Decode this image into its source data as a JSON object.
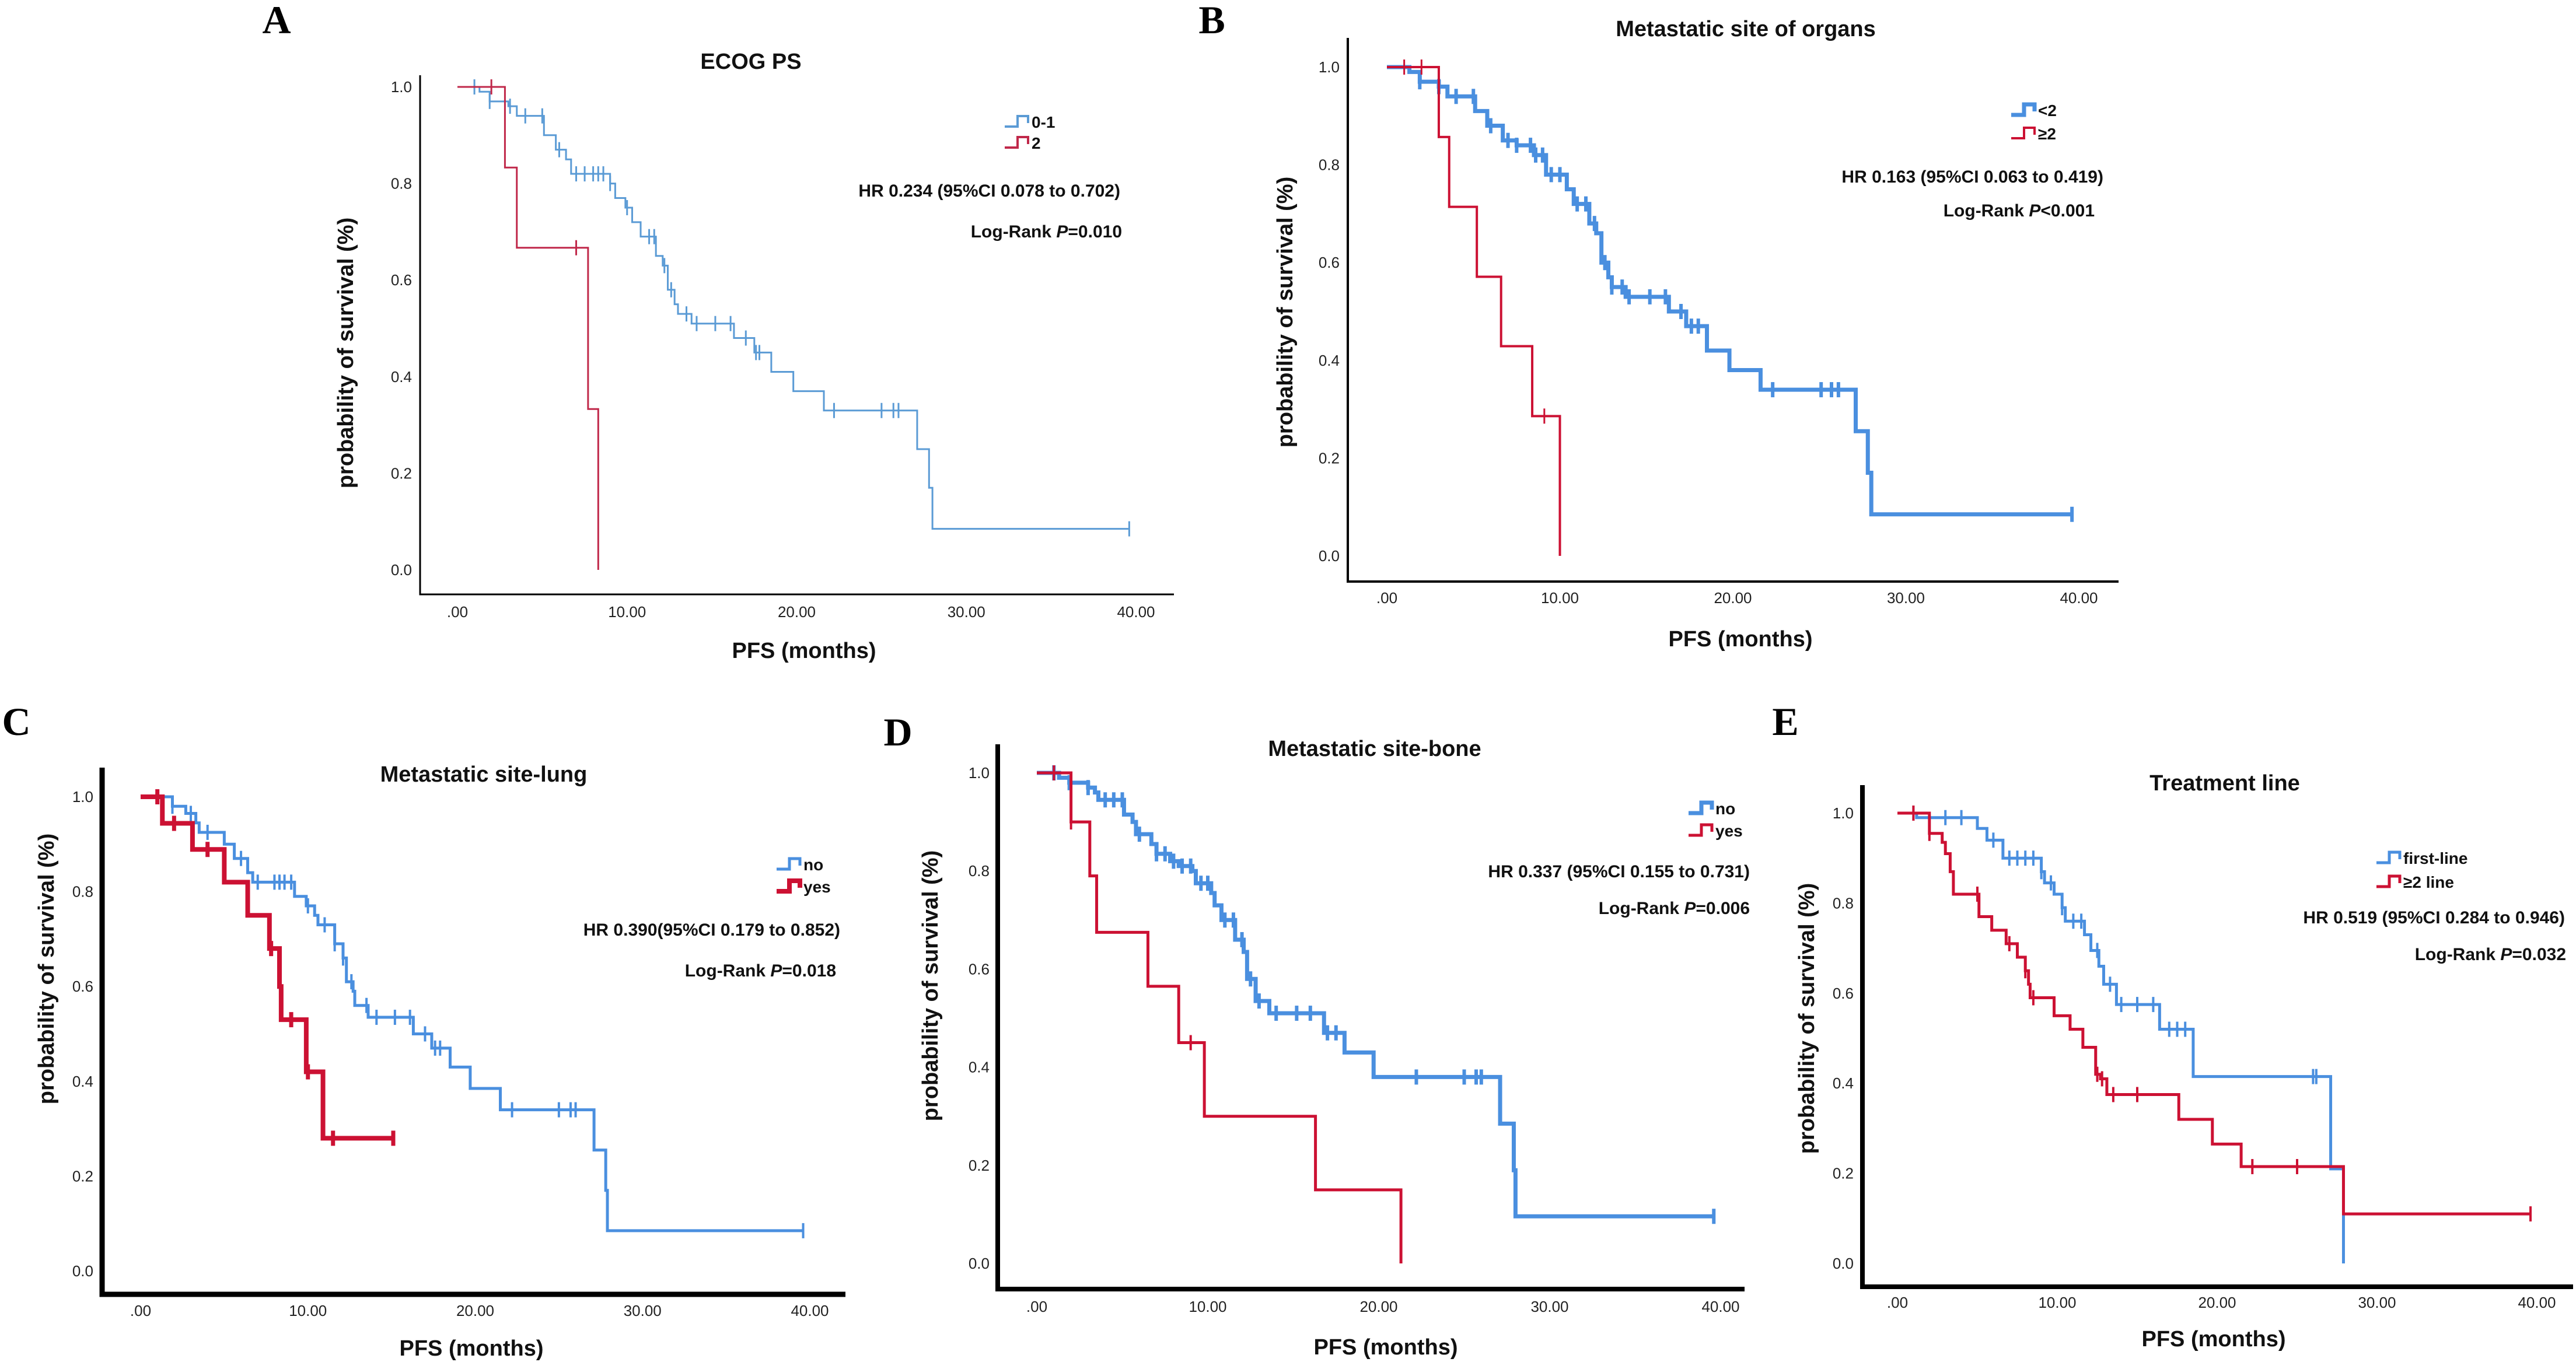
{
  "chart_data": [
    {
      "type": "line",
      "letter": "A",
      "title": "ECOG PS",
      "xlabel": "PFS (months)",
      "ylabel": "probability of survival (%)",
      "xticks": [
        ".00",
        "10.00",
        "20.00",
        "30.00",
        "40.00"
      ],
      "yticks": [
        "0.0",
        "0.2",
        "0.4",
        "0.6",
        "0.8",
        "1.0"
      ],
      "xlim": [
        0,
        40
      ],
      "ylim": [
        0,
        1
      ],
      "hr": "HR 0.234 (95%CI 0.078 to 0.702)",
      "logrank": "Log-Rank ",
      "p": "P",
      "pval": "=0.010",
      "series": [
        {
          "name": "0-1",
          "color": "#5b9bd5",
          "steps": [
            [
              1.3,
              0.99
            ],
            [
              1.9,
              0.97
            ],
            [
              3,
              0.96
            ],
            [
              3.5,
              0.94
            ],
            [
              5.1,
              0.9
            ],
            [
              5.8,
              0.87
            ],
            [
              6.4,
              0.85
            ],
            [
              6.7,
              0.82
            ],
            [
              9,
              0.8
            ],
            [
              9.3,
              0.77
            ],
            [
              9.9,
              0.75
            ],
            [
              10.3,
              0.72
            ],
            [
              10.8,
              0.69
            ],
            [
              11.7,
              0.65
            ],
            [
              12.1,
              0.63
            ],
            [
              12.4,
              0.58
            ],
            [
              12.8,
              0.55
            ],
            [
              13,
              0.53
            ],
            [
              13.8,
              0.51
            ],
            [
              16.3,
              0.48
            ],
            [
              17.5,
              0.45
            ],
            [
              18.5,
              0.41
            ],
            [
              19.8,
              0.37
            ],
            [
              21.6,
              0.33
            ],
            [
              27.1,
              0.25
            ],
            [
              27.8,
              0.17
            ],
            [
              28,
              0.085
            ]
          ],
          "end": 39.6,
          "censors": [
            1,
            1.9,
            3.1,
            4,
            5,
            6,
            7,
            7.5,
            8,
            8.3,
            8.6,
            9,
            10,
            11.3,
            11.6,
            12.2,
            12.6,
            13.5,
            14.1,
            15.2,
            16.1,
            17,
            17.6,
            17.8,
            22.2,
            25,
            25.7,
            26,
            39.6
          ]
        },
        {
          "name": "2",
          "color": "#c0284a",
          "steps": [
            [
              2.8,
              0.833
            ],
            [
              3.5,
              0.667
            ],
            [
              7.7,
              0.333
            ],
            [
              8.3,
              0
            ]
          ],
          "end": 8.3,
          "censors": [
            2,
            7
          ]
        }
      ]
    },
    {
      "type": "line",
      "letter": "B",
      "title": "Metastatic site of organs",
      "xlabel": "PFS (months)",
      "ylabel": "probability of survival (%)",
      "xticks": [
        ".00",
        "10.00",
        "20.00",
        "30.00",
        "40.00"
      ],
      "yticks": [
        "0.0",
        "0.2",
        "0.4",
        "0.6",
        "0.8",
        "1.0"
      ],
      "xlim": [
        0,
        40
      ],
      "ylim": [
        0,
        1
      ],
      "hr": "HR 0.163 (95%CI 0.063 to 0.419)",
      "logrank": "Log-Rank ",
      "p": "P",
      "pval": "<0.001",
      "series": [
        {
          "name": "<2",
          "color": "#4a8fdf",
          "steps": [
            [
              1.3,
              0.99
            ],
            [
              1.9,
              0.97
            ],
            [
              3,
              0.96
            ],
            [
              3.5,
              0.94
            ],
            [
              5.1,
              0.91
            ],
            [
              5.8,
              0.88
            ],
            [
              6.7,
              0.85
            ],
            [
              7.5,
              0.84
            ],
            [
              8.5,
              0.82
            ],
            [
              9.2,
              0.78
            ],
            [
              10.4,
              0.75
            ],
            [
              10.8,
              0.72
            ],
            [
              11.7,
              0.68
            ],
            [
              12.1,
              0.66
            ],
            [
              12.4,
              0.6
            ],
            [
              12.8,
              0.57
            ],
            [
              13,
              0.55
            ],
            [
              13.8,
              0.53
            ],
            [
              16.3,
              0.5
            ],
            [
              17.3,
              0.47
            ],
            [
              18.5,
              0.42
            ],
            [
              19.8,
              0.38
            ],
            [
              21.6,
              0.34
            ],
            [
              27.1,
              0.255
            ],
            [
              27.8,
              0.17
            ],
            [
              28,
              0.085
            ]
          ],
          "end": 39.6,
          "censors": [
            1.9,
            3,
            4,
            5,
            6,
            7,
            7.5,
            8.3,
            8.6,
            9,
            9.5,
            10,
            11,
            11.5,
            12,
            12.6,
            13,
            13.6,
            14,
            15.2,
            16.1,
            17,
            17.6,
            18,
            22.3,
            25.1,
            25.7,
            26.1,
            39.6
          ]
        },
        {
          "name": "≥2",
          "color": "#cc1133",
          "steps": [
            [
              3,
              0.857
            ],
            [
              3.6,
              0.714
            ],
            [
              5.2,
              0.571
            ],
            [
              6.6,
              0.429
            ],
            [
              8.4,
              0.286
            ],
            [
              10,
              0
            ]
          ],
          "end": 10,
          "censors": [
            1,
            2,
            9.1
          ]
        }
      ]
    },
    {
      "type": "line",
      "letter": "C",
      "title": "Metastatic site-lung",
      "xlabel": "PFS (months)",
      "ylabel": "probability of survival (%)",
      "xticks": [
        ".00",
        "10.00",
        "20.00",
        "30.00",
        "40.00"
      ],
      "yticks": [
        "0.0",
        "0.2",
        "0.4",
        "0.6",
        "0.8",
        "1.0"
      ],
      "xlim": [
        0,
        40
      ],
      "ylim": [
        0,
        1
      ],
      "hr": "HR 0.390(95%CI 0.179 to 0.852)",
      "logrank": "Log-Rank ",
      "p": "P",
      "pval": "=0.018",
      "series": [
        {
          "name": "no",
          "color": "#4a8fdf",
          "steps": [
            [
              1.9,
              0.98
            ],
            [
              2.7,
              0.965
            ],
            [
              3.3,
              0.945
            ],
            [
              3.5,
              0.925
            ],
            [
              5,
              0.9
            ],
            [
              5.6,
              0.87
            ],
            [
              6.4,
              0.84
            ],
            [
              6.7,
              0.82
            ],
            [
              9.2,
              0.79
            ],
            [
              9.9,
              0.77
            ],
            [
              10.4,
              0.75
            ],
            [
              10.6,
              0.73
            ],
            [
              11.6,
              0.69
            ],
            [
              12.1,
              0.66
            ],
            [
              12.3,
              0.61
            ],
            [
              12.7,
              0.59
            ],
            [
              12.8,
              0.56
            ],
            [
              13.6,
              0.535
            ],
            [
              16.3,
              0.5
            ],
            [
              17.4,
              0.47
            ],
            [
              18.5,
              0.43
            ],
            [
              19.7,
              0.385
            ],
            [
              21.5,
              0.34
            ],
            [
              27.1,
              0.255
            ],
            [
              27.8,
              0.17
            ],
            [
              27.9,
              0.085
            ]
          ],
          "end": 39.6,
          "censors": [
            1.9,
            3,
            4,
            6,
            7,
            8,
            8.3,
            8.6,
            9,
            10,
            11,
            11.6,
            12.1,
            12.6,
            13.5,
            14.1,
            15.2,
            16.1,
            17,
            17.6,
            17.9,
            22.2,
            25,
            25.7,
            26,
            39.6
          ]
        },
        {
          "name": "yes",
          "color": "#cc1133",
          "steps": [
            [
              1.3,
              0.944
            ],
            [
              3.1,
              0.889
            ],
            [
              5,
              0.82
            ],
            [
              6.4,
              0.75
            ],
            [
              7.7,
              0.68
            ],
            [
              8.3,
              0.6
            ],
            [
              8.4,
              0.53
            ],
            [
              9.9,
              0.42
            ],
            [
              10.9,
              0.28
            ]
          ],
          "end": 15.2,
          "censors": [
            1,
            2,
            4,
            7.8,
            9,
            10,
            11.5,
            15.1
          ]
        }
      ]
    },
    {
      "type": "line",
      "letter": "D",
      "title": "Metastatic site-bone",
      "xlabel": "PFS (months)",
      "ylabel": "probability of survival (%)",
      "xticks": [
        ".00",
        "10.00",
        "20.00",
        "30.00",
        "40.00"
      ],
      "yticks": [
        "0.0",
        "0.2",
        "0.4",
        "0.6",
        "0.8",
        "1.0"
      ],
      "xlim": [
        0,
        40
      ],
      "ylim": [
        0,
        1
      ],
      "hr": "HR 0.337 (95%CI 0.155 to 0.731)",
      "logrank": "Log-Rank ",
      "p": "P",
      "pval": "=0.006",
      "series": [
        {
          "name": "no",
          "color": "#4a8fdf",
          "steps": [
            [
              1.3,
              0.99
            ],
            [
              1.9,
              0.98
            ],
            [
              3,
              0.97
            ],
            [
              3.4,
              0.96
            ],
            [
              3.6,
              0.945
            ],
            [
              5.1,
              0.915
            ],
            [
              5.6,
              0.9
            ],
            [
              5.8,
              0.875
            ],
            [
              6.7,
              0.855
            ],
            [
              7,
              0.835
            ],
            [
              7.8,
              0.82
            ],
            [
              8.3,
              0.81
            ],
            [
              9.1,
              0.8
            ],
            [
              9.3,
              0.775
            ],
            [
              10.2,
              0.755
            ],
            [
              10.4,
              0.73
            ],
            [
              10.8,
              0.7
            ],
            [
              11.6,
              0.66
            ],
            [
              12.1,
              0.635
            ],
            [
              12.3,
              0.58
            ],
            [
              12.8,
              0.535
            ],
            [
              13.6,
              0.51
            ],
            [
              16.8,
              0.47
            ],
            [
              18,
              0.43
            ],
            [
              19.7,
              0.38
            ],
            [
              27.1,
              0.285
            ],
            [
              27.9,
              0.19
            ],
            [
              28,
              0.096
            ]
          ],
          "end": 39.6,
          "censors": [
            1,
            1.9,
            3,
            4,
            4.5,
            5,
            6,
            7,
            7.5,
            8,
            8.5,
            9,
            9.6,
            10,
            11,
            11.5,
            12,
            12.5,
            13,
            14,
            15.2,
            16,
            17,
            17.5,
            22.2,
            25,
            25.7,
            26,
            39.6
          ]
        },
        {
          "name": "yes",
          "color": "#cc1133",
          "steps": [
            [
              2,
              0.9
            ],
            [
              3.1,
              0.79
            ],
            [
              3.5,
              0.675
            ],
            [
              6.5,
              0.565
            ],
            [
              8.3,
              0.45
            ],
            [
              9.8,
              0.3
            ],
            [
              16.3,
              0.15
            ],
            [
              21.3,
              0
            ]
          ],
          "end": 21.3,
          "censors": [
            1,
            2,
            9
          ]
        }
      ]
    },
    {
      "type": "line",
      "letter": "E",
      "title": "Treatment line",
      "xlabel": "PFS (months)",
      "ylabel": "probability of survival (%)",
      "xticks": [
        ".00",
        "10.00",
        "20.00",
        "30.00",
        "40.00"
      ],
      "yticks": [
        "0.0",
        "0.2",
        "0.4",
        "0.6",
        "0.8",
        "1.0"
      ],
      "xlim": [
        0,
        40
      ],
      "ylim": [
        0,
        1
      ],
      "hr": "HR 0.519 (95%CI 0.284 to 0.946)",
      "logrank": "Log-Rank ",
      "p": "P",
      "pval": "=0.032",
      "series": [
        {
          "name": "first-line",
          "color": "#4a8fdf",
          "steps": [
            [
              1.2,
              0.99
            ],
            [
              5,
              0.966
            ],
            [
              5.6,
              0.94
            ],
            [
              6.6,
              0.9
            ],
            [
              9,
              0.87
            ],
            [
              9.2,
              0.845
            ],
            [
              9.8,
              0.82
            ],
            [
              10.3,
              0.79
            ],
            [
              10.5,
              0.76
            ],
            [
              11.7,
              0.73
            ],
            [
              12.1,
              0.695
            ],
            [
              12.6,
              0.66
            ],
            [
              12.9,
              0.62
            ],
            [
              13.7,
              0.575
            ],
            [
              16.4,
              0.52
            ],
            [
              18.5,
              0.415
            ],
            [
              27.1,
              0.21
            ],
            [
              27.9,
              0
            ]
          ],
          "end": 27.9,
          "censors": [
            1,
            3,
            4,
            6,
            7,
            7.5,
            8,
            8.5,
            9,
            9.6,
            10.3,
            11,
            11.5,
            12.5,
            13.3,
            14,
            15,
            16,
            17,
            17.5,
            18,
            26,
            26.2
          ]
        },
        {
          "name": "≥2 line",
          "color": "#cc1133",
          "steps": [
            [
              2,
              0.955
            ],
            [
              2.8,
              0.935
            ],
            [
              3,
              0.91
            ],
            [
              3.3,
              0.87
            ],
            [
              3.5,
              0.82
            ],
            [
              5.1,
              0.77
            ],
            [
              5.9,
              0.74
            ],
            [
              6.8,
              0.71
            ],
            [
              7.5,
              0.68
            ],
            [
              8,
              0.65
            ],
            [
              8.2,
              0.62
            ],
            [
              8.3,
              0.59
            ],
            [
              9.8,
              0.55
            ],
            [
              10.8,
              0.52
            ],
            [
              11.6,
              0.48
            ],
            [
              12.4,
              0.42
            ],
            [
              12.7,
              0.41
            ],
            [
              13.1,
              0.375
            ],
            [
              17.6,
              0.32
            ],
            [
              19.7,
              0.265
            ],
            [
              21.5,
              0.215
            ],
            [
              27.9,
              0.11
            ]
          ],
          "end": 39.6,
          "censors": [
            1,
            2,
            5,
            7,
            8,
            8.5,
            12.5,
            12.8,
            13.5,
            15,
            22.2,
            25,
            39.6
          ]
        }
      ]
    }
  ]
}
